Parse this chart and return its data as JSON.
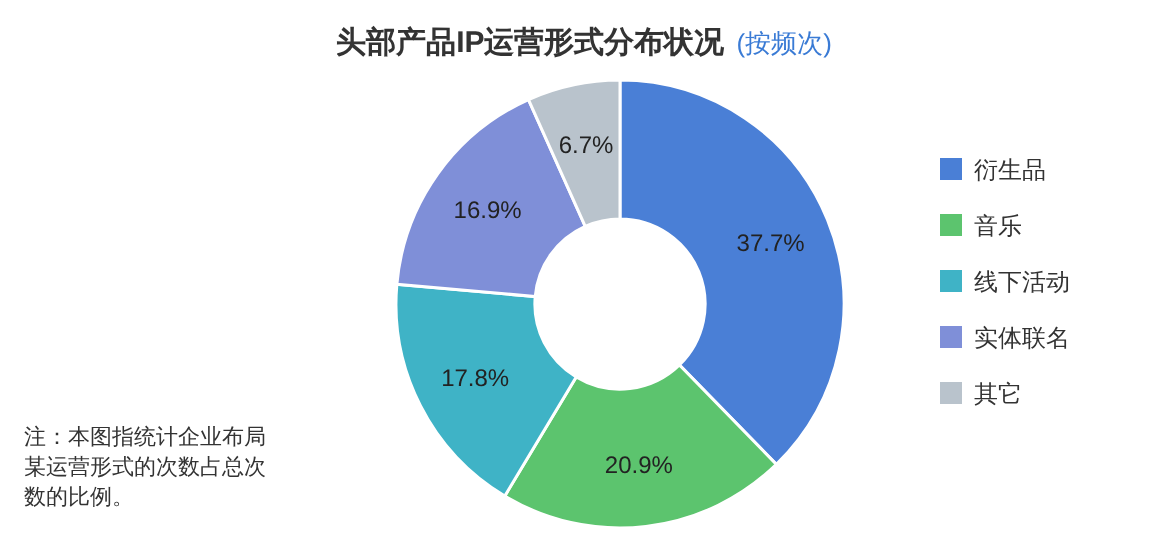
{
  "chart_data": {
    "type": "donut",
    "title": "头部产品IP运营形式分布状况",
    "subtitle": "(按频次)",
    "categories": [
      "衍生品",
      "音乐",
      "线下活动",
      "实体联名",
      "其它"
    ],
    "values": [
      37.7,
      20.9,
      17.8,
      16.9,
      6.7
    ],
    "value_labels": [
      "37.7%",
      "20.9%",
      "17.8%",
      "16.9%",
      "6.7%"
    ],
    "colors": [
      "#4a7fd6",
      "#5cc46e",
      "#3fb3c6",
      "#7f8fd8",
      "#b9c3cc"
    ],
    "legend": "right",
    "annotations": [
      "注：本图指统计企业布局某运营形式的次数占总次数的比例。"
    ]
  }
}
